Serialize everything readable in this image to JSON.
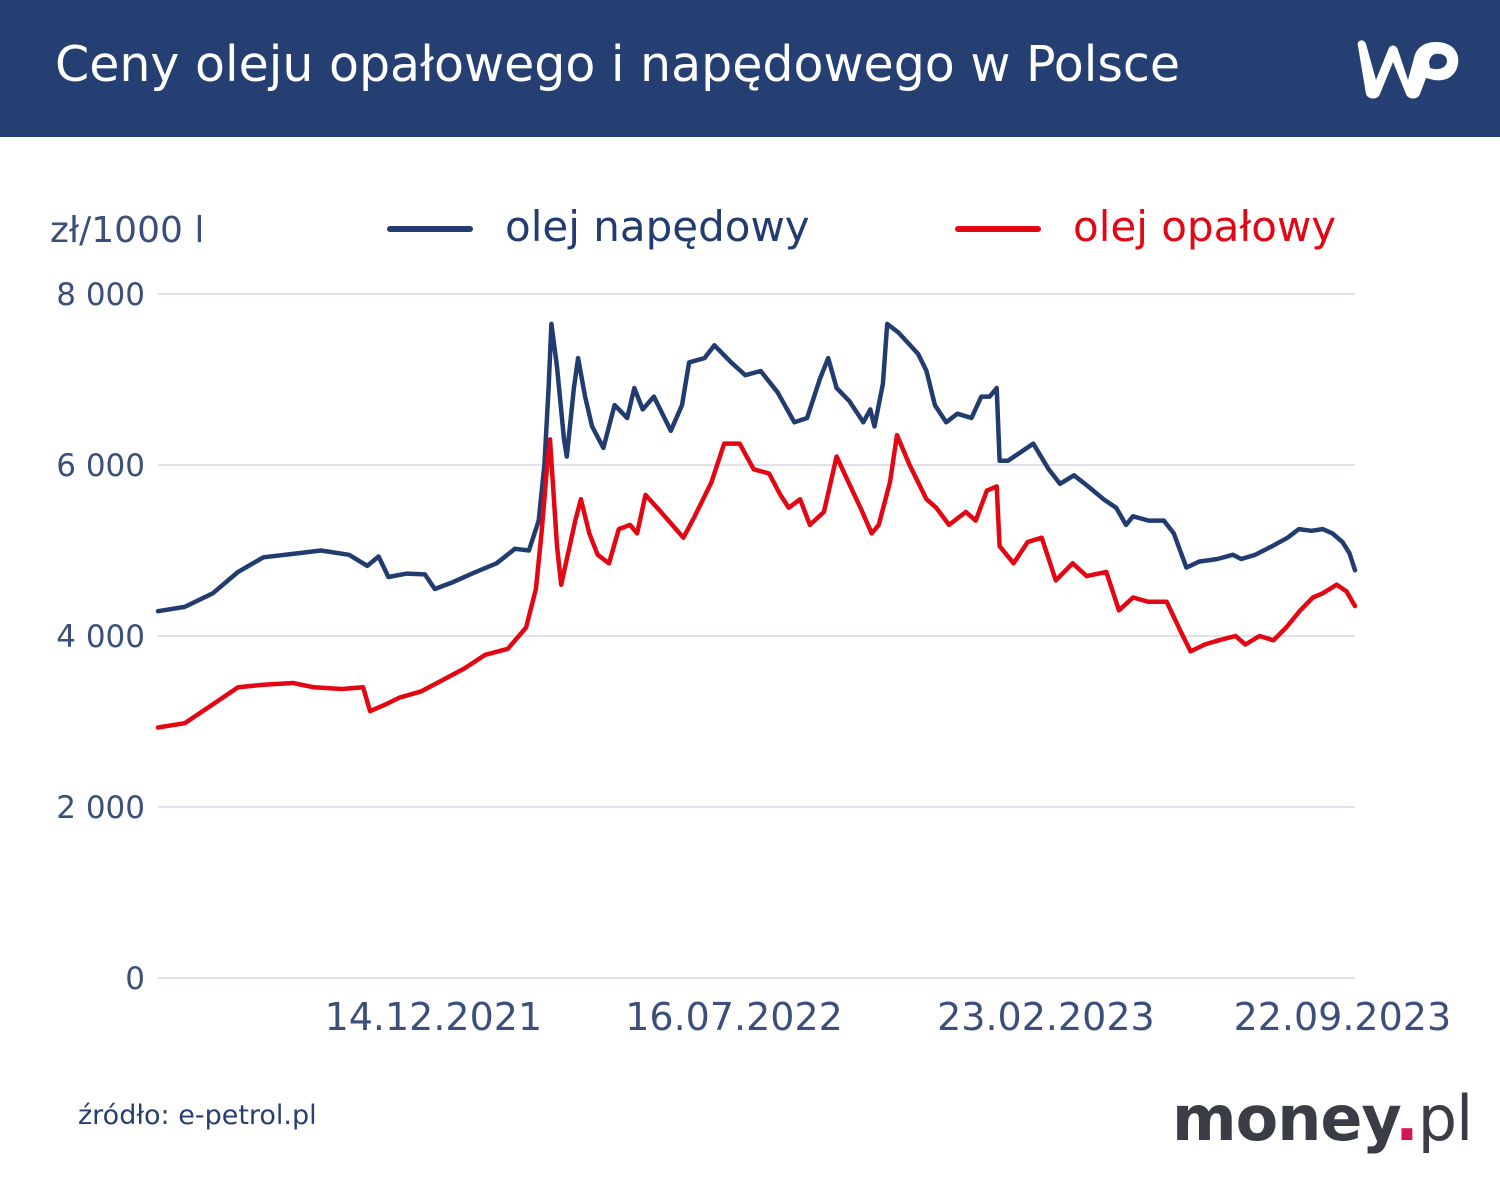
{
  "header": {
    "title": "Ceny oleju opałowego i napędowego w Polsce",
    "logo_text": "WP"
  },
  "colors": {
    "header_bg": "#253f72",
    "diesel": "#223c70",
    "heating": "#e30613",
    "grid": "#d3d8e4",
    "axis_text": "#3b4f7c"
  },
  "footer": {
    "source": "źródło: e-petrol.pl",
    "brand_main": "money",
    "brand_dot": ".",
    "brand_tld": "pl"
  },
  "chart_data": {
    "type": "line",
    "ylabel": "zł/1000 l",
    "ylim": [
      0,
      8000
    ],
    "yticks": [
      0,
      2000,
      4000,
      6000,
      8000
    ],
    "ytick_labels": [
      "0",
      "2 000",
      "4 000",
      "6 000",
      "8 000"
    ],
    "xlim": [
      "2021-06-01",
      "2023-10-01"
    ],
    "xticks": [
      "2021-12-14",
      "2022-07-16",
      "2023-02-23",
      "2023-09-22"
    ],
    "xtick_labels": [
      "14.12.2021",
      "16.07.2022",
      "23.02.2023",
      "22.09.2023"
    ],
    "grid": true,
    "legend_position": "top",
    "series": [
      {
        "name": "olej napędowy",
        "color": "#223c70",
        "points": [
          [
            "2021-06-01",
            4290
          ],
          [
            "2021-06-20",
            4340
          ],
          [
            "2021-07-10",
            4500
          ],
          [
            "2021-07-28",
            4750
          ],
          [
            "2021-08-15",
            4920
          ],
          [
            "2021-09-05",
            4960
          ],
          [
            "2021-09-25",
            5000
          ],
          [
            "2021-10-15",
            4950
          ],
          [
            "2021-10-28",
            4820
          ],
          [
            "2021-11-05",
            4930
          ],
          [
            "2021-11-12",
            4690
          ],
          [
            "2021-11-25",
            4730
          ],
          [
            "2021-12-08",
            4720
          ],
          [
            "2021-12-15",
            4550
          ],
          [
            "2021-12-28",
            4630
          ],
          [
            "2022-01-12",
            4740
          ],
          [
            "2022-01-28",
            4850
          ],
          [
            "2022-02-10",
            5020
          ],
          [
            "2022-02-20",
            5000
          ],
          [
            "2022-02-27",
            5350
          ],
          [
            "2022-03-03",
            6000
          ],
          [
            "2022-03-06",
            6900
          ],
          [
            "2022-03-08",
            7650
          ],
          [
            "2022-03-12",
            7150
          ],
          [
            "2022-03-17",
            6300
          ],
          [
            "2022-03-19",
            6100
          ],
          [
            "2022-03-24",
            6900
          ],
          [
            "2022-03-27",
            7250
          ],
          [
            "2022-04-01",
            6800
          ],
          [
            "2022-04-06",
            6450
          ],
          [
            "2022-04-14",
            6200
          ],
          [
            "2022-04-22",
            6700
          ],
          [
            "2022-05-01",
            6550
          ],
          [
            "2022-05-06",
            6900
          ],
          [
            "2022-05-12",
            6650
          ],
          [
            "2022-05-20",
            6800
          ],
          [
            "2022-06-01",
            6400
          ],
          [
            "2022-06-09",
            6700
          ],
          [
            "2022-06-14",
            7200
          ],
          [
            "2022-06-25",
            7250
          ],
          [
            "2022-07-02",
            7400
          ],
          [
            "2022-07-14",
            7200
          ],
          [
            "2022-07-24",
            7050
          ],
          [
            "2022-08-04",
            7100
          ],
          [
            "2022-08-16",
            6850
          ],
          [
            "2022-08-28",
            6500
          ],
          [
            "2022-09-06",
            6550
          ],
          [
            "2022-09-15",
            7000
          ],
          [
            "2022-09-21",
            7250
          ],
          [
            "2022-09-27",
            6900
          ],
          [
            "2022-10-06",
            6750
          ],
          [
            "2022-10-16",
            6500
          ],
          [
            "2022-10-21",
            6650
          ],
          [
            "2022-10-24",
            6450
          ],
          [
            "2022-10-30",
            6950
          ],
          [
            "2022-11-02",
            7650
          ],
          [
            "2022-11-10",
            7550
          ],
          [
            "2022-11-24",
            7300
          ],
          [
            "2022-11-30",
            7100
          ],
          [
            "2022-12-06",
            6700
          ],
          [
            "2022-12-14",
            6500
          ],
          [
            "2022-12-22",
            6600
          ],
          [
            "2023-01-01",
            6550
          ],
          [
            "2023-01-08",
            6800
          ],
          [
            "2023-01-14",
            6800
          ],
          [
            "2023-01-19",
            6900
          ],
          [
            "2023-01-21",
            6050
          ],
          [
            "2023-01-27",
            6050
          ],
          [
            "2023-02-05",
            6150
          ],
          [
            "2023-02-14",
            6250
          ],
          [
            "2023-02-25",
            5950
          ],
          [
            "2023-03-05",
            5780
          ],
          [
            "2023-03-15",
            5880
          ],
          [
            "2023-03-25",
            5750
          ],
          [
            "2023-04-05",
            5600
          ],
          [
            "2023-04-14",
            5500
          ],
          [
            "2023-04-21",
            5300
          ],
          [
            "2023-04-26",
            5400
          ],
          [
            "2023-05-07",
            5350
          ],
          [
            "2023-05-18",
            5350
          ],
          [
            "2023-05-25",
            5200
          ],
          [
            "2023-06-03",
            4800
          ],
          [
            "2023-06-12",
            4870
          ],
          [
            "2023-06-25",
            4900
          ],
          [
            "2023-07-06",
            4950
          ],
          [
            "2023-07-12",
            4900
          ],
          [
            "2023-07-22",
            4950
          ],
          [
            "2023-08-03",
            5050
          ],
          [
            "2023-08-14",
            5150
          ],
          [
            "2023-08-22",
            5250
          ],
          [
            "2023-08-31",
            5230
          ],
          [
            "2023-09-08",
            5250
          ],
          [
            "2023-09-15",
            5200
          ],
          [
            "2023-09-22",
            5100
          ],
          [
            "2023-09-27",
            4970
          ],
          [
            "2023-10-01",
            4770
          ]
        ]
      },
      {
        "name": "olej opałowy",
        "color": "#e30613",
        "points": [
          [
            "2021-06-01",
            2930
          ],
          [
            "2021-06-20",
            2980
          ],
          [
            "2021-07-10",
            3200
          ],
          [
            "2021-07-28",
            3400
          ],
          [
            "2021-08-15",
            3430
          ],
          [
            "2021-09-05",
            3450
          ],
          [
            "2021-09-20",
            3400
          ],
          [
            "2021-10-10",
            3380
          ],
          [
            "2021-10-25",
            3400
          ],
          [
            "2021-10-30",
            3120
          ],
          [
            "2021-11-10",
            3200
          ],
          [
            "2021-11-20",
            3280
          ],
          [
            "2021-12-05",
            3350
          ],
          [
            "2021-12-20",
            3480
          ],
          [
            "2022-01-05",
            3620
          ],
          [
            "2022-01-20",
            3780
          ],
          [
            "2022-02-05",
            3850
          ],
          [
            "2022-02-18",
            4100
          ],
          [
            "2022-02-25",
            4550
          ],
          [
            "2022-03-01",
            5200
          ],
          [
            "2022-03-05",
            6000
          ],
          [
            "2022-03-07",
            6300
          ],
          [
            "2022-03-12",
            5050
          ],
          [
            "2022-03-15",
            4600
          ],
          [
            "2022-03-25",
            5350
          ],
          [
            "2022-03-29",
            5600
          ],
          [
            "2022-04-04",
            5200
          ],
          [
            "2022-04-10",
            4950
          ],
          [
            "2022-04-18",
            4850
          ],
          [
            "2022-04-25",
            5250
          ],
          [
            "2022-05-03",
            5300
          ],
          [
            "2022-05-08",
            5200
          ],
          [
            "2022-05-14",
            5650
          ],
          [
            "2022-05-25",
            5450
          ],
          [
            "2022-06-02",
            5300
          ],
          [
            "2022-06-10",
            5150
          ],
          [
            "2022-06-18",
            5400
          ],
          [
            "2022-06-30",
            5800
          ],
          [
            "2022-07-09",
            6250
          ],
          [
            "2022-07-20",
            6250
          ],
          [
            "2022-07-30",
            5950
          ],
          [
            "2022-08-10",
            5900
          ],
          [
            "2022-08-18",
            5650
          ],
          [
            "2022-08-24",
            5500
          ],
          [
            "2022-09-01",
            5600
          ],
          [
            "2022-09-08",
            5300
          ],
          [
            "2022-09-18",
            5450
          ],
          [
            "2022-09-27",
            6100
          ],
          [
            "2022-10-04",
            5850
          ],
          [
            "2022-10-14",
            5500
          ],
          [
            "2022-10-22",
            5200
          ],
          [
            "2022-10-27",
            5300
          ],
          [
            "2022-11-04",
            5800
          ],
          [
            "2022-11-09",
            6350
          ],
          [
            "2022-11-18",
            6000
          ],
          [
            "2022-11-30",
            5600
          ],
          [
            "2022-12-07",
            5500
          ],
          [
            "2022-12-16",
            5300
          ],
          [
            "2022-12-28",
            5450
          ],
          [
            "2023-01-04",
            5350
          ],
          [
            "2023-01-12",
            5700
          ],
          [
            "2023-01-19",
            5750
          ],
          [
            "2023-01-21",
            5050
          ],
          [
            "2023-01-31",
            4850
          ],
          [
            "2023-02-10",
            5100
          ],
          [
            "2023-02-20",
            5150
          ],
          [
            "2023-03-02",
            4650
          ],
          [
            "2023-03-14",
            4850
          ],
          [
            "2023-03-24",
            4700
          ],
          [
            "2023-04-07",
            4750
          ],
          [
            "2023-04-16",
            4300
          ],
          [
            "2023-04-26",
            4450
          ],
          [
            "2023-05-07",
            4400
          ],
          [
            "2023-05-20",
            4400
          ],
          [
            "2023-05-30",
            4050
          ],
          [
            "2023-06-06",
            3820
          ],
          [
            "2023-06-16",
            3900
          ],
          [
            "2023-06-26",
            3950
          ],
          [
            "2023-07-08",
            4000
          ],
          [
            "2023-07-15",
            3900
          ],
          [
            "2023-07-25",
            4000
          ],
          [
            "2023-08-04",
            3950
          ],
          [
            "2023-08-13",
            4100
          ],
          [
            "2023-08-23",
            4300
          ],
          [
            "2023-09-01",
            4450
          ],
          [
            "2023-09-08",
            4500
          ],
          [
            "2023-09-18",
            4600
          ],
          [
            "2023-09-25",
            4520
          ],
          [
            "2023-10-01",
            4350
          ]
        ]
      }
    ]
  }
}
